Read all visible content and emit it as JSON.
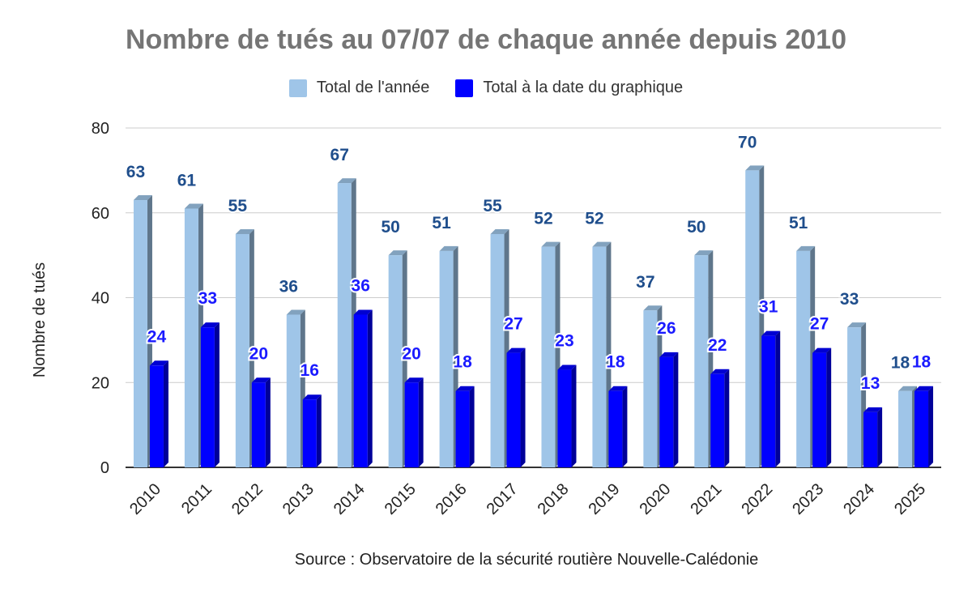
{
  "chart_data": {
    "type": "bar",
    "title": "Nombre de tués au 07/07 de chaque année depuis 2010",
    "ylabel": "Nombre de tués",
    "xlabel": "",
    "ylim": [
      0,
      80
    ],
    "yticks": [
      0,
      20,
      40,
      60,
      80
    ],
    "grid": true,
    "legend_position": "top",
    "categories": [
      "2010",
      "2011",
      "2012",
      "2013",
      "2014",
      "2015",
      "2016",
      "2017",
      "2018",
      "2019",
      "2020",
      "2021",
      "2022",
      "2023",
      "2024",
      "2025"
    ],
    "series": [
      {
        "name": "Total de l'année",
        "color": "#9fc5e8",
        "label_color": "#1f4e8c",
        "values": [
          63,
          61,
          55,
          36,
          67,
          50,
          51,
          55,
          52,
          52,
          37,
          50,
          70,
          51,
          33,
          18
        ]
      },
      {
        "name": "Total à la date du graphique",
        "color": "#0000ff",
        "label_color": "#1a1aff",
        "values": [
          24,
          33,
          20,
          16,
          36,
          20,
          18,
          27,
          23,
          18,
          26,
          22,
          31,
          27,
          13,
          18
        ]
      }
    ],
    "source": "Source : Observatoire de la sécurité routière Nouvelle-Calédonie"
  }
}
